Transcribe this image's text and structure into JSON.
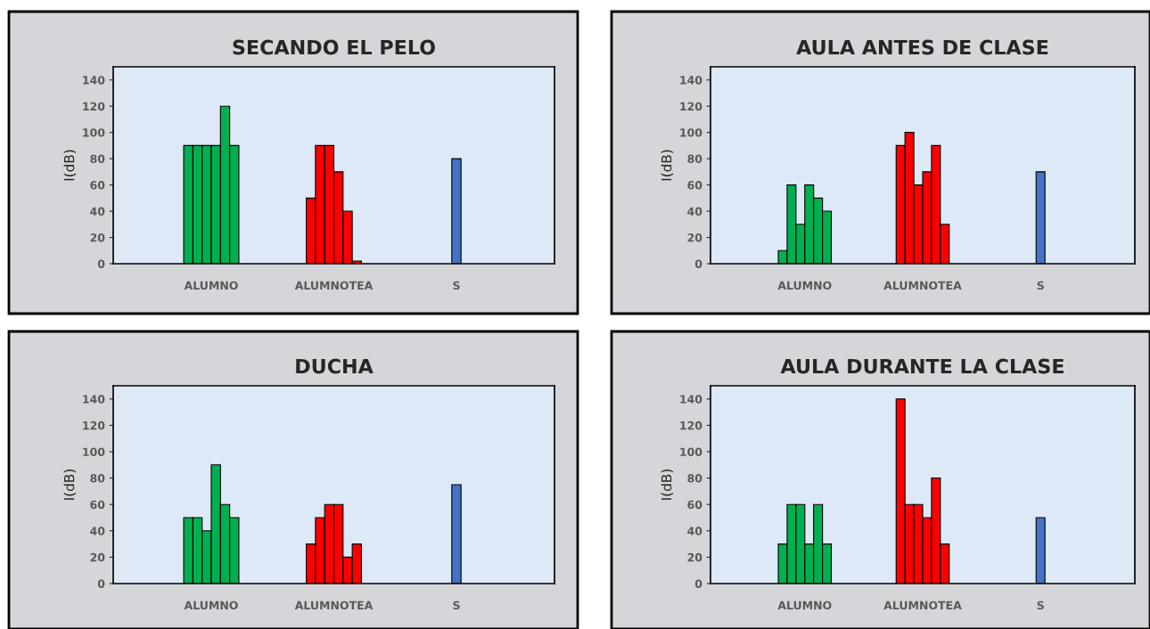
{
  "chart_data": [
    {
      "type": "bar",
      "title": "SECANDO EL PELO",
      "ylabel": "I(dB)",
      "categories": [
        "ALUMNO",
        "ALUMNOTEA",
        "S"
      ],
      "ylim": [
        0,
        150
      ],
      "yticks": [
        0,
        20,
        40,
        60,
        80,
        100,
        120,
        140
      ],
      "grid": false,
      "series": [
        {
          "colors": [
            "#00b050",
            "#ff0000",
            "#4472c4"
          ],
          "values": [
            90,
            50,
            80
          ]
        },
        {
          "colors": [
            "#00b050",
            "#ff0000",
            "#4472c4"
          ],
          "values": [
            90,
            90,
            null
          ]
        },
        {
          "colors": [
            "#00b050",
            "#ff0000",
            "#4472c4"
          ],
          "values": [
            90,
            90,
            null
          ]
        },
        {
          "colors": [
            "#00b050",
            "#ff0000",
            "#4472c4"
          ],
          "values": [
            90,
            70,
            null
          ]
        },
        {
          "colors": [
            "#00b050",
            "#ff0000",
            "#4472c4"
          ],
          "values": [
            120,
            40,
            null
          ]
        },
        {
          "colors": [
            "#00b050",
            "#ff0000",
            "#4472c4"
          ],
          "values": [
            90,
            2,
            null
          ]
        }
      ]
    },
    {
      "type": "bar",
      "title": "AULA ANTES DE CLASE",
      "ylabel": "I(dB)",
      "categories": [
        "ALUMNO",
        "ALUMNOTEA",
        "S"
      ],
      "ylim": [
        0,
        150
      ],
      "yticks": [
        0,
        20,
        40,
        60,
        80,
        100,
        120,
        140
      ],
      "grid": false,
      "series": [
        {
          "colors": [
            "#00b050",
            "#ff0000",
            "#4472c4"
          ],
          "values": [
            10,
            90,
            70
          ]
        },
        {
          "colors": [
            "#00b050",
            "#ff0000",
            "#4472c4"
          ],
          "values": [
            60,
            100,
            null
          ]
        },
        {
          "colors": [
            "#00b050",
            "#ff0000",
            "#4472c4"
          ],
          "values": [
            30,
            60,
            null
          ]
        },
        {
          "colors": [
            "#00b050",
            "#ff0000",
            "#4472c4"
          ],
          "values": [
            60,
            70,
            null
          ]
        },
        {
          "colors": [
            "#00b050",
            "#ff0000",
            "#4472c4"
          ],
          "values": [
            50,
            90,
            null
          ]
        },
        {
          "colors": [
            "#00b050",
            "#ff0000",
            "#4472c4"
          ],
          "values": [
            40,
            30,
            null
          ]
        }
      ]
    },
    {
      "type": "bar",
      "title": "DUCHA",
      "ylabel": "I(dB)",
      "categories": [
        "ALUMNO",
        "ALUMNOTEA",
        "S"
      ],
      "ylim": [
        0,
        150
      ],
      "yticks": [
        0,
        20,
        40,
        60,
        80,
        100,
        120,
        140
      ],
      "grid": false,
      "series": [
        {
          "colors": [
            "#00b050",
            "#ff0000",
            "#4472c4"
          ],
          "values": [
            50,
            30,
            75
          ]
        },
        {
          "colors": [
            "#00b050",
            "#ff0000",
            "#4472c4"
          ],
          "values": [
            50,
            50,
            null
          ]
        },
        {
          "colors": [
            "#00b050",
            "#ff0000",
            "#4472c4"
          ],
          "values": [
            40,
            60,
            null
          ]
        },
        {
          "colors": [
            "#00b050",
            "#ff0000",
            "#4472c4"
          ],
          "values": [
            90,
            60,
            null
          ]
        },
        {
          "colors": [
            "#00b050",
            "#ff0000",
            "#4472c4"
          ],
          "values": [
            60,
            20,
            null
          ]
        },
        {
          "colors": [
            "#00b050",
            "#ff0000",
            "#4472c4"
          ],
          "values": [
            50,
            30,
            null
          ]
        }
      ]
    },
    {
      "type": "bar",
      "title": "AULA DURANTE LA CLASE",
      "ylabel": "I(dB)",
      "categories": [
        "ALUMNO",
        "ALUMNOTEA",
        "S"
      ],
      "ylim": [
        0,
        150
      ],
      "yticks": [
        0,
        20,
        40,
        60,
        80,
        100,
        120,
        140
      ],
      "grid": false,
      "series": [
        {
          "colors": [
            "#00b050",
            "#ff0000",
            "#4472c4"
          ],
          "values": [
            30,
            140,
            50
          ]
        },
        {
          "colors": [
            "#00b050",
            "#ff0000",
            "#4472c4"
          ],
          "values": [
            60,
            60,
            null
          ]
        },
        {
          "colors": [
            "#00b050",
            "#ff0000",
            "#4472c4"
          ],
          "values": [
            60,
            60,
            null
          ]
        },
        {
          "colors": [
            "#00b050",
            "#ff0000",
            "#4472c4"
          ],
          "values": [
            30,
            50,
            null
          ]
        },
        {
          "colors": [
            "#00b050",
            "#ff0000",
            "#4472c4"
          ],
          "values": [
            60,
            80,
            null
          ]
        },
        {
          "colors": [
            "#00b050",
            "#ff0000",
            "#4472c4"
          ],
          "values": [
            30,
            30,
            null
          ]
        }
      ]
    }
  ]
}
